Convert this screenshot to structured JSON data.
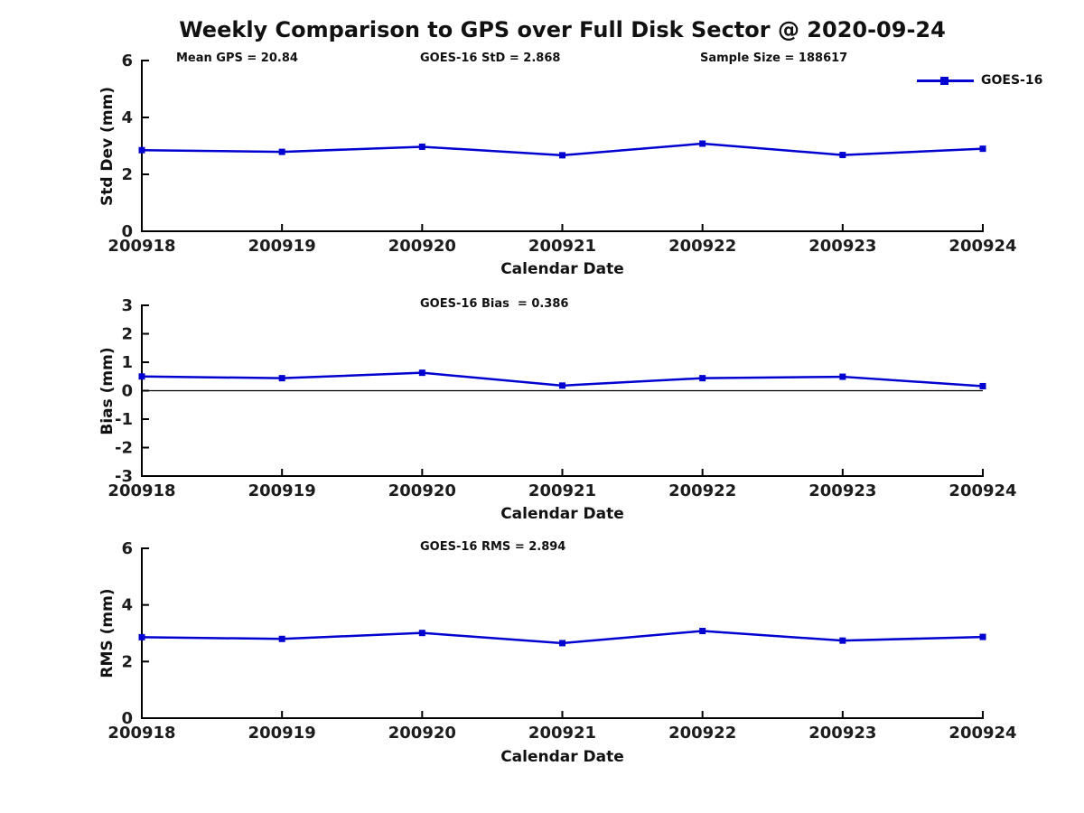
{
  "figure": {
    "title": "Weekly Comparison to GPS over Full Disk Sector @ 2020-09-24",
    "line_color": "#0000d0",
    "axis_color": "#000000",
    "text_color": "#111111",
    "legend": {
      "label": "GOES-16"
    }
  },
  "annotations": {
    "mean_gps": "Mean GPS = 20.84",
    "std": "GOES-16 StD = 2.868",
    "sample_size": "Sample Size = 188617",
    "bias": "GOES-16 Bias  = 0.386",
    "rms": "GOES-16 RMS = 2.894"
  },
  "chart_data": [
    {
      "type": "line",
      "title": "",
      "xlabel": "Calendar Date",
      "ylabel": "Std Dev (mm)",
      "categories": [
        "200918",
        "200919",
        "200920",
        "200921",
        "200922",
        "200923",
        "200924"
      ],
      "series": [
        {
          "name": "GOES-16",
          "values": [
            2.85,
            2.79,
            2.97,
            2.67,
            3.08,
            2.68,
            2.9
          ]
        }
      ],
      "ylim": [
        0,
        6
      ],
      "yticks": [
        0,
        2,
        4,
        6
      ],
      "grid": false,
      "zero_line": false,
      "legend_position": "upper-right-outside",
      "marker": "square"
    },
    {
      "type": "line",
      "title": "GOES-16 Bias  = 0.386",
      "xlabel": "Calendar Date",
      "ylabel": "Bias (mm)",
      "categories": [
        "200918",
        "200919",
        "200920",
        "200921",
        "200922",
        "200923",
        "200924"
      ],
      "series": [
        {
          "name": "GOES-16",
          "values": [
            0.5,
            0.44,
            0.63,
            0.18,
            0.44,
            0.49,
            0.16
          ]
        }
      ],
      "ylim": [
        -3,
        3
      ],
      "yticks": [
        -3,
        -2,
        -1,
        0,
        1,
        2,
        3
      ],
      "grid": false,
      "zero_line": true,
      "legend_position": "none",
      "marker": "square"
    },
    {
      "type": "line",
      "title": "GOES-16 RMS = 2.894",
      "xlabel": "Calendar Date",
      "ylabel": "RMS (mm)",
      "categories": [
        "200918",
        "200919",
        "200920",
        "200921",
        "200922",
        "200923",
        "200924"
      ],
      "series": [
        {
          "name": "GOES-16",
          "values": [
            2.86,
            2.8,
            3.01,
            2.65,
            3.08,
            2.74,
            2.87
          ]
        }
      ],
      "ylim": [
        0,
        6
      ],
      "yticks": [
        0,
        2,
        4,
        6
      ],
      "grid": false,
      "zero_line": false,
      "legend_position": "none",
      "marker": "square"
    }
  ]
}
